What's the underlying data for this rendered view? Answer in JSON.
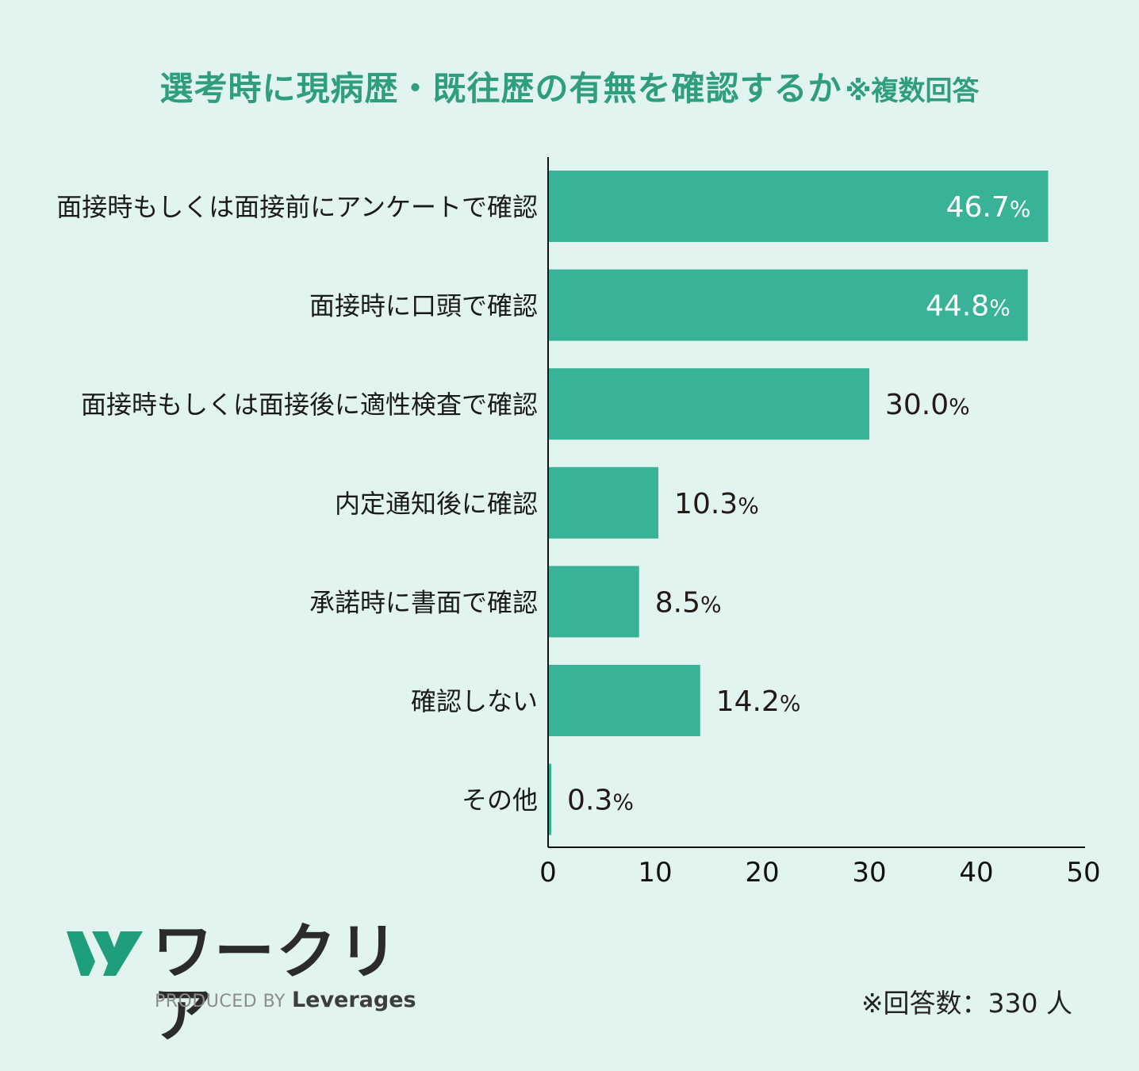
{
  "title": {
    "main": "選考時に現病歴・既往歴の有無を確認するか",
    "note": "※複数回答"
  },
  "colors": {
    "bar": "#38b398",
    "title": "#2f9e7c",
    "background": "#e2f4ef"
  },
  "chart_data": {
    "type": "bar",
    "orientation": "horizontal",
    "categories": [
      "面接時もしくは面接前にアンケートで確認",
      "面接時に口頭で確認",
      "面接時もしくは面接後に適性検査で確認",
      "内定通知後に確認",
      "承諾時に書面で確認",
      "確認しない",
      "その他"
    ],
    "values": [
      46.7,
      44.8,
      30.0,
      10.3,
      8.5,
      14.2,
      0.3
    ],
    "value_labels": [
      "46.7",
      "44.8",
      "30.0",
      "10.3",
      "8.5",
      "14.2",
      "0.3"
    ],
    "unit": "%",
    "xlim": [
      0,
      50
    ],
    "xticks": [
      "0",
      "10",
      "20",
      "30",
      "40",
      "50"
    ],
    "grid": false,
    "legend": "none"
  },
  "logo": {
    "name": "ワークリア",
    "produced_by": "PRODUCED BY",
    "brand": "Leverages"
  },
  "footnote": "※回答数：330 人"
}
